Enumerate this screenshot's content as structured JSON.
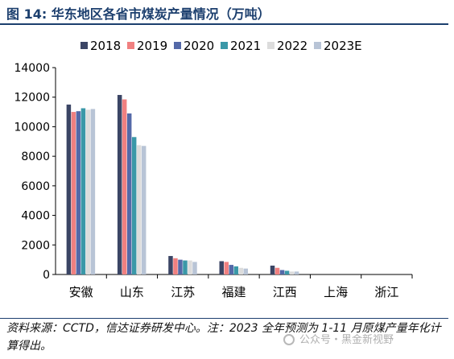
{
  "title": "图 14: 华东地区各省市煤炭产量情况（万吨）",
  "footnote": "资料来源：CCTD，信达证券研发中心。注：2023 全年预测为 1-11 月原煤产量年化计算得出。",
  "watermark": "公众号・黑金新视野",
  "colors": {
    "title": "#1c3f6e",
    "series": [
      "#3b4565",
      "#f08080",
      "#5469a8",
      "#3a98a8",
      "#dcdcdc",
      "#b8c4d6"
    ]
  },
  "chart_data": {
    "type": "bar",
    "title": "",
    "xlabel": "",
    "ylabel": "",
    "ylim": [
      0,
      14000
    ],
    "yticks": [
      0,
      2000,
      4000,
      6000,
      8000,
      10000,
      12000,
      14000
    ],
    "grid": false,
    "legend_position": "top",
    "categories": [
      "安徽",
      "山东",
      "江苏",
      "福建",
      "江西",
      "上海",
      "浙江"
    ],
    "series": [
      {
        "name": "2018",
        "values": [
          11500,
          12150,
          1250,
          900,
          600,
          0,
          0
        ]
      },
      {
        "name": "2019",
        "values": [
          11000,
          11850,
          1100,
          850,
          450,
          0,
          0
        ]
      },
      {
        "name": "2020",
        "values": [
          11050,
          10900,
          1000,
          650,
          300,
          0,
          0
        ]
      },
      {
        "name": "2021",
        "values": [
          11250,
          9300,
          950,
          550,
          250,
          0,
          0
        ]
      },
      {
        "name": "2022",
        "values": [
          11150,
          8750,
          950,
          450,
          200,
          0,
          0
        ]
      },
      {
        "name": "2023E",
        "values": [
          11200,
          8700,
          850,
          400,
          200,
          0,
          0
        ]
      }
    ]
  }
}
